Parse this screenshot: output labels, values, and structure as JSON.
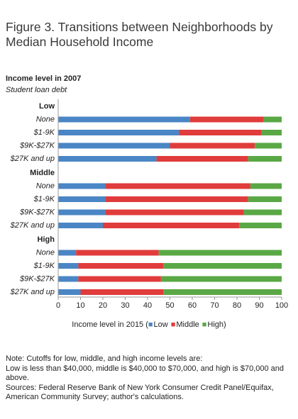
{
  "chart_data": {
    "type": "bar",
    "orientation": "horizontal",
    "stacked": true,
    "title": "Figure 3. Transitions between Neighborhoods by Median Household Income",
    "header": "Income level in 2007",
    "subheader": "Student loan debt",
    "groups": [
      {
        "name": "Low",
        "categories": [
          "None",
          "$1-9K",
          "$9K-$27K",
          "$27K and up"
        ]
      },
      {
        "name": "Middle",
        "categories": [
          "None",
          "$1-9K",
          "$9K-$27K",
          "$27K and up"
        ]
      },
      {
        "name": "High",
        "categories": [
          "None",
          "$1-9K",
          "$9K-$27K",
          "$27K and up"
        ]
      }
    ],
    "series": [
      {
        "name": "Low",
        "color": "#4a86c5",
        "values": [
          59,
          54,
          50,
          44,
          21,
          21,
          21,
          20,
          8,
          9,
          9,
          10
        ]
      },
      {
        "name": "Middle",
        "color": "#e03c3c",
        "values": [
          33,
          37,
          38,
          41,
          65,
          64,
          62,
          61,
          37,
          38,
          37,
          37
        ]
      },
      {
        "name": "High",
        "color": "#5aa845",
        "values": [
          8,
          9,
          12,
          15,
          14,
          15,
          17,
          19,
          55,
          53,
          54,
          53
        ]
      }
    ],
    "xlim": [
      0,
      100
    ],
    "xticks": [
      0,
      10,
      20,
      30,
      40,
      50,
      60,
      70,
      80,
      90,
      100
    ],
    "legend_title": "Income level in 2015",
    "legend_open": "(",
    "legend_close": ")",
    "notes": [
      "Note: Cutoffs for low, middle, and high income levels are:",
      "Low is less than $40,000, middle is $40,000 to $70,000, and high is $70,000 and above.",
      "Sources: Federal Reserve Bank of New York Consumer Credit Panel/Equifax, American Community Survey; author's calculations."
    ]
  }
}
